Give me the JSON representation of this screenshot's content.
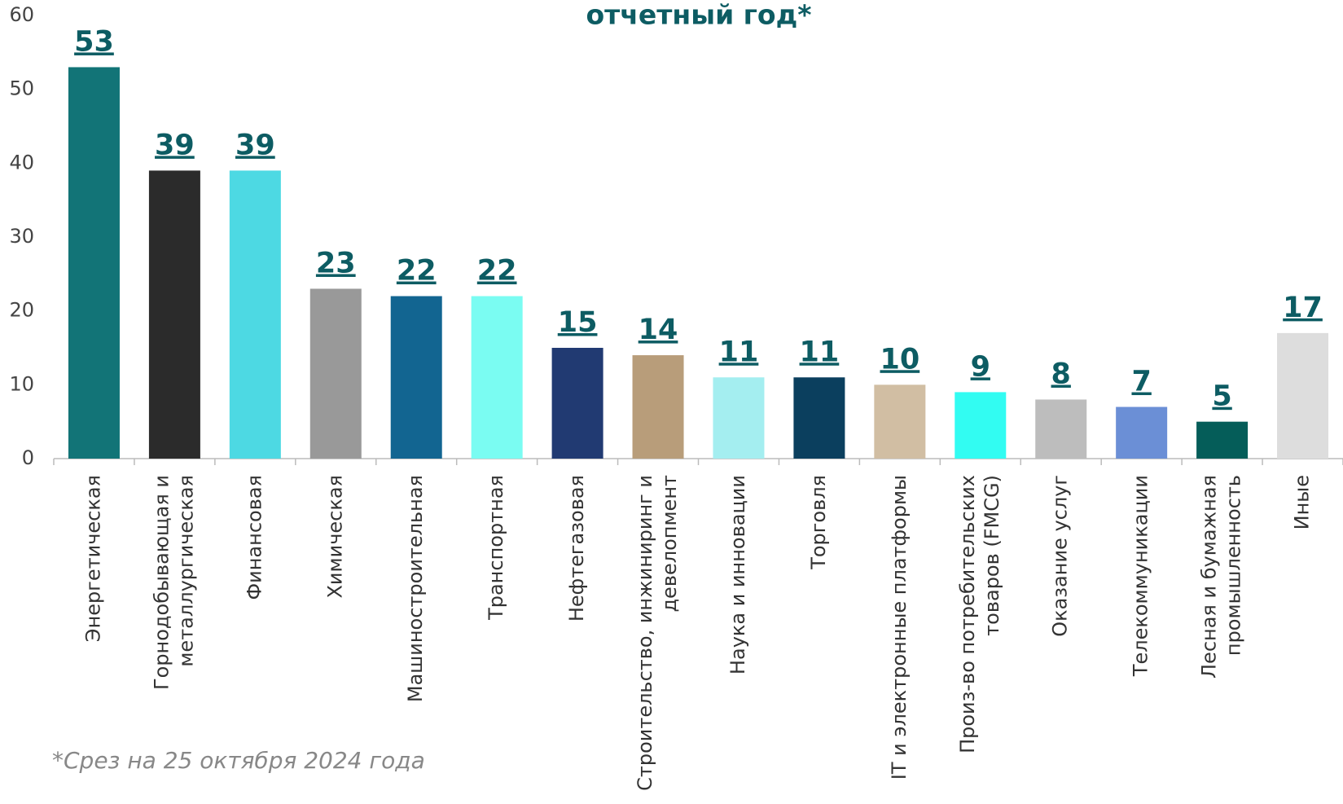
{
  "chart_data": {
    "type": "bar",
    "title": "отчетный год*",
    "categories": [
      "Энергетическая",
      "Горнодобывающая и металлургическая",
      "Финансовая",
      "Химическая",
      "Машиностроительная",
      "Транспортная",
      "Нефтегазовая",
      "Строительство, инжиниринг и девелопмент",
      "Наука и инновации",
      "Торговля",
      "IT и электронные платформы",
      "Произ-во потребительских товаров (FMCG)",
      "Оказание услуг",
      "Телекоммуникации",
      "Лесная и бумажная промышленность",
      "Иные"
    ],
    "values": [
      53,
      39,
      39,
      23,
      22,
      22,
      15,
      14,
      11,
      11,
      10,
      9,
      8,
      7,
      5,
      17
    ],
    "colors": [
      "#127477",
      "#2b2b2b",
      "#4dd9e3",
      "#999999",
      "#126591",
      "#7afcf2",
      "#213a72",
      "#b89d7a",
      "#a4eef0",
      "#0b3f5e",
      "#d1bea3",
      "#32fcf2",
      "#bdbdbd",
      "#6b8fd6",
      "#055d59",
      "#dddddd"
    ],
    "ylim": [
      0,
      60
    ],
    "yticks": [
      0,
      10,
      20,
      30,
      40,
      50,
      60
    ],
    "grid": false,
    "footnote": "*Срез на 25 октября 2024 года"
  }
}
